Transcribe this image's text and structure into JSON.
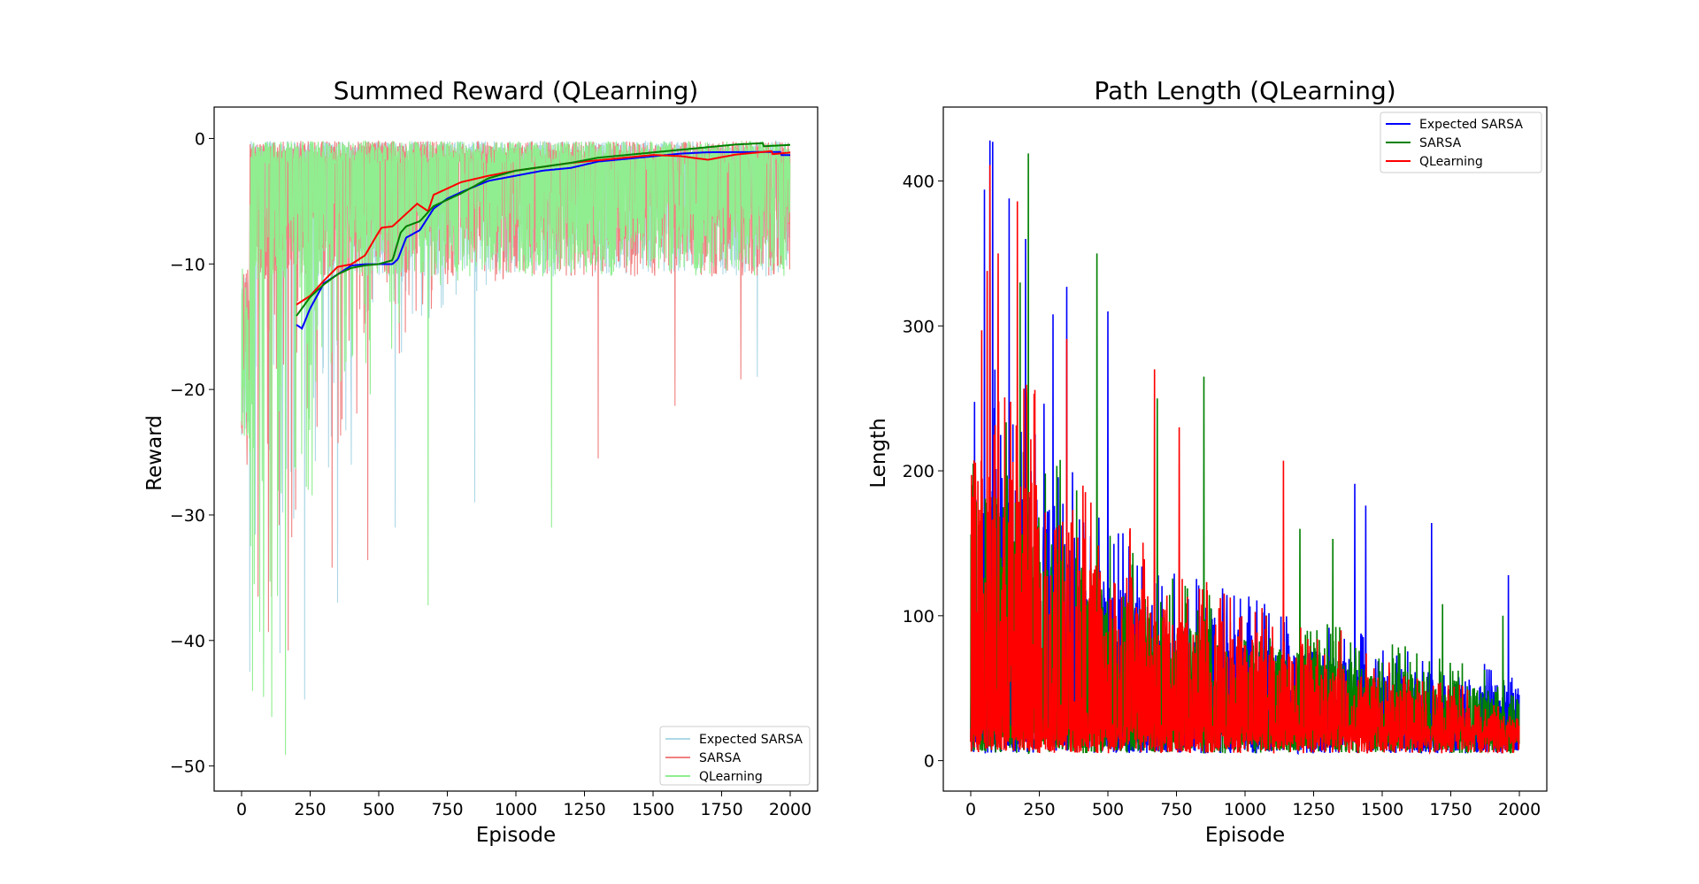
{
  "chart_data": [
    {
      "type": "line",
      "title": "Summed Reward (QLearning)",
      "xlabel": "Episode",
      "ylabel": "Reward",
      "xlim": [
        -100,
        2100
      ],
      "ylim": [
        -52,
        2.5
      ],
      "xticks": [
        0,
        250,
        500,
        750,
        1000,
        1250,
        1500,
        1750,
        2000
      ],
      "yticks": [
        0,
        -10,
        -20,
        -30,
        -40,
        -50
      ],
      "legend_position": "lower-right",
      "episodes": 2000,
      "series": [
        {
          "name": "Expected SARSA",
          "color": "#add8e6",
          "raw_range": {
            "min": -44.7,
            "max": 0
          },
          "notable_dips": [
            [
              30,
              -42.5
            ],
            [
              140,
              -41
            ],
            [
              230,
              -44.7
            ],
            [
              350,
              -37
            ],
            [
              400,
              -26
            ],
            [
              560,
              -31
            ],
            [
              850,
              -29
            ],
            [
              1880,
              -19
            ]
          ],
          "moving_average": {
            "color": "#0000ff",
            "x": [
              200,
              220,
              250,
              300,
              350,
              400,
              450,
              550,
              570,
              600,
              650,
              700,
              750,
              800,
              900,
              1000,
              1100,
              1200,
              1300,
              1400,
              1500,
              1600,
              1700,
              1800,
              2000
            ],
            "y": [
              -14.8,
              -15.1,
              -13.5,
              -11.5,
              -10.8,
              -10.1,
              -10.0,
              -10.0,
              -9.6,
              -7.9,
              -7.3,
              -5.6,
              -4.8,
              -4.3,
              -3.4,
              -3.0,
              -2.6,
              -2.4,
              -1.9,
              -1.7,
              -1.5,
              -1.3,
              -1.2,
              -1.2,
              -1.2
            ]
          }
        },
        {
          "name": "SARSA",
          "color": "#f08080",
          "raw_range": {
            "min": -41.5,
            "max": 0
          },
          "notable_dips": [
            [
              20,
              -26
            ],
            [
              60,
              -36.5
            ],
            [
              170,
              -40.8
            ],
            [
              330,
              -34.2
            ],
            [
              460,
              -33.6
            ],
            [
              1300,
              -25.5
            ],
            [
              1580,
              -21.3
            ],
            [
              1820,
              -19.2
            ]
          ],
          "moving_average": {
            "color": "#ff0000",
            "x": [
              200,
              250,
              300,
              350,
              400,
              450,
              490,
              510,
              550,
              600,
              640,
              680,
              700,
              750,
              800,
              900,
              1000,
              1100,
              1200,
              1300,
              1400,
              1500,
              1600,
              1700,
              1800,
              2000
            ],
            "y": [
              -13.2,
              -12.5,
              -11.3,
              -10.2,
              -10.0,
              -9.3,
              -7.8,
              -7.1,
              -7.0,
              -6.0,
              -5.2,
              -5.8,
              -4.5,
              -4.0,
              -3.5,
              -3.0,
              -2.6,
              -2.3,
              -2.0,
              -1.8,
              -1.6,
              -1.4,
              -1.5,
              -1.8,
              -1.4,
              -1.0
            ]
          }
        },
        {
          "name": "QLearning",
          "color": "#90ee90",
          "raw_range": {
            "min": -49.1,
            "max": -0.1
          },
          "notable_dips": [
            [
              80,
              -44.5
            ],
            [
              110,
              -46.1
            ],
            [
              160,
              -49.1
            ],
            [
              680,
              -37.2
            ],
            [
              1130,
              -31
            ]
          ],
          "moving_average": {
            "color": "#008000",
            "x": [
              200,
              250,
              300,
              350,
              400,
              450,
              500,
              550,
              580,
              600,
              650,
              700,
              750,
              800,
              900,
              1000,
              1100,
              1200,
              1300,
              1400,
              1500,
              1600,
              1700,
              1800,
              2000
            ],
            "y": [
              -14.1,
              -12.6,
              -11.6,
              -10.8,
              -10.3,
              -10.1,
              -10.0,
              -9.7,
              -7.5,
              -7.0,
              -6.6,
              -5.4,
              -4.9,
              -4.4,
              -3.2,
              -2.6,
              -2.3,
              -2.0,
              -1.6,
              -1.4,
              -1.2,
              -1.0,
              -0.8,
              -0.6,
              -0.4
            ]
          }
        }
      ]
    },
    {
      "type": "line",
      "title": "Path Length (QLearning)",
      "xlabel": "Episode",
      "ylabel": "Length",
      "xlim": [
        -100,
        2100
      ],
      "ylim": [
        -21,
        451
      ],
      "xticks": [
        0,
        250,
        500,
        750,
        1000,
        1250,
        1500,
        1750,
        2000
      ],
      "yticks": [
        0,
        100,
        200,
        300,
        400
      ],
      "legend_position": "upper-right",
      "episodes": 2000,
      "series": [
        {
          "name": "Expected SARSA",
          "color": "#0000ff",
          "peaks": [
            [
              50,
              394
            ],
            [
              70,
              428
            ],
            [
              80,
              427
            ],
            [
              140,
              388
            ],
            [
              200,
              360
            ],
            [
              300,
              308
            ],
            [
              350,
              327
            ],
            [
              500,
              310
            ],
            [
              1400,
              191
            ],
            [
              1440,
              176
            ],
            [
              1680,
              164
            ],
            [
              1960,
              128
            ]
          ],
          "envelope": {
            "x": [
              0,
              250,
              500,
              750,
              1000,
              1250,
              1500,
              1750,
              2000
            ],
            "y": [
              200,
              180,
              120,
              95,
              85,
              70,
              60,
              55,
              45
            ]
          }
        },
        {
          "name": "SARSA",
          "color": "#008000",
          "peaks": [
            [
              10,
              154
            ],
            [
              210,
              419
            ],
            [
              180,
              330
            ],
            [
              460,
              350
            ],
            [
              680,
              250
            ],
            [
              850,
              265
            ],
            [
              1200,
              160
            ],
            [
              1320,
              153
            ],
            [
              1720,
              108
            ],
            [
              1940,
              100
            ]
          ],
          "envelope": {
            "x": [
              0,
              250,
              500,
              750,
              1000,
              1250,
              1500,
              1750,
              2000
            ],
            "y": [
              190,
              170,
              115,
              90,
              80,
              70,
              60,
              50,
              40
            ]
          }
        },
        {
          "name": "QLearning",
          "color": "#ff0000",
          "peaks": [
            [
              40,
              297
            ],
            [
              60,
              338
            ],
            [
              70,
              411
            ],
            [
              100,
              350
            ],
            [
              170,
              386
            ],
            [
              350,
              291
            ],
            [
              670,
              270
            ],
            [
              760,
              230
            ],
            [
              1140,
              207
            ],
            [
              1350,
              90
            ]
          ],
          "envelope": {
            "x": [
              0,
              250,
              500,
              750,
              1000,
              1250,
              1500,
              1750,
              2000
            ],
            "y": [
              210,
              185,
              125,
              95,
              80,
              65,
              50,
              40,
              25
            ]
          }
        }
      ]
    }
  ]
}
